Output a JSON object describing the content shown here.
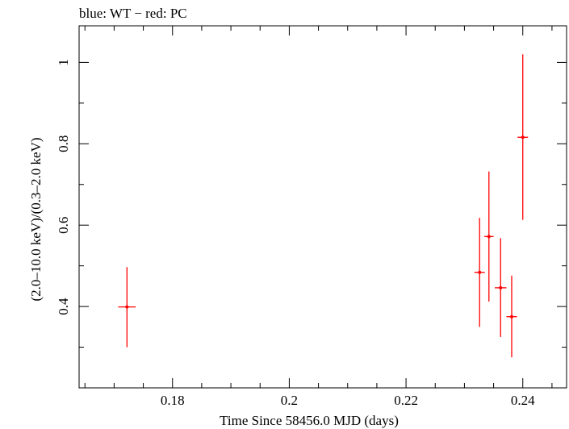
{
  "chart_data": {
    "type": "scatter",
    "title": "blue: WT − red: PC",
    "xlabel": "Time Since 58456.0 MJD (days)",
    "ylabel": "(2.0–10.0 keV)/(0.3–2.0 keV)",
    "xlim": [
      0.164,
      0.2475
    ],
    "ylim": [
      0.2,
      1.09
    ],
    "x_ticks": [
      {
        "value": 0.18,
        "label": "0.18"
      },
      {
        "value": 0.2,
        "label": "0.2"
      },
      {
        "value": 0.22,
        "label": "0.22"
      },
      {
        "value": 0.24,
        "label": "0.24"
      }
    ],
    "x_minor_step": 0.005,
    "y_ticks": [
      {
        "value": 0.4,
        "label": "0.4"
      },
      {
        "value": 0.6,
        "label": "0.6"
      },
      {
        "value": 0.8,
        "label": "0.8"
      },
      {
        "value": 1.0,
        "label": "1"
      }
    ],
    "y_minor_step": 0.1,
    "grid": false,
    "series": [
      {
        "name": "PC",
        "color": "#ff0000",
        "points": [
          {
            "x": 0.1722,
            "y": 0.399,
            "xerr": 0.0015,
            "ylo": 0.3,
            "yhi": 0.497
          },
          {
            "x": 0.2326,
            "y": 0.484,
            "xerr": 0.0009,
            "ylo": 0.35,
            "yhi": 0.618
          },
          {
            "x": 0.2342,
            "y": 0.572,
            "xerr": 0.0008,
            "ylo": 0.412,
            "yhi": 0.732
          },
          {
            "x": 0.2362,
            "y": 0.446,
            "xerr": 0.001,
            "ylo": 0.325,
            "yhi": 0.568
          },
          {
            "x": 0.2381,
            "y": 0.375,
            "xerr": 0.0009,
            "ylo": 0.275,
            "yhi": 0.476
          },
          {
            "x": 0.24,
            "y": 0.816,
            "xerr": 0.0009,
            "ylo": 0.613,
            "yhi": 1.02
          }
        ]
      },
      {
        "name": "WT",
        "color": "#0000ff",
        "points": []
      }
    ]
  }
}
